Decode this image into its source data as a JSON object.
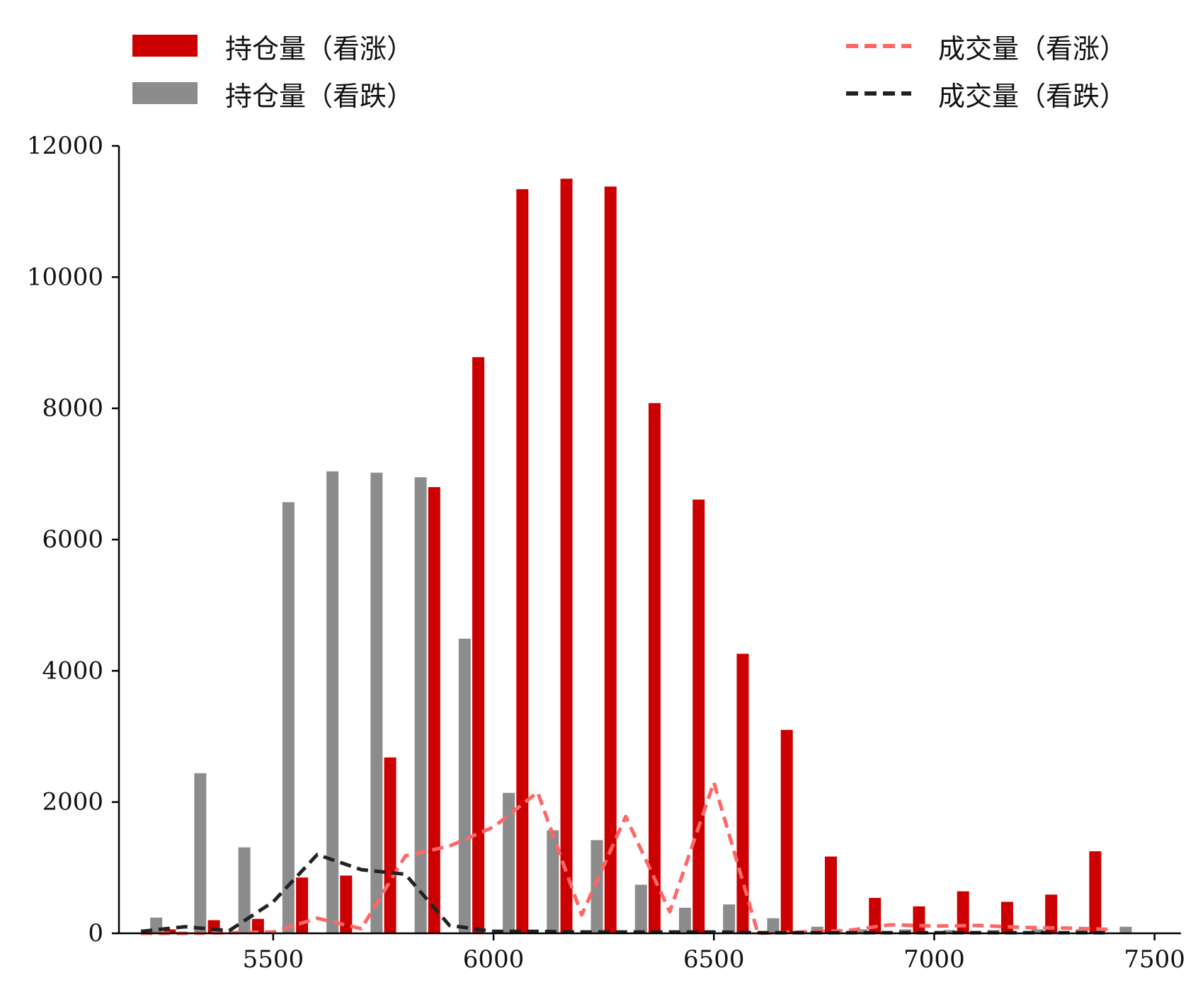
{
  "chart_data": {
    "type": "bar",
    "title": "",
    "xlabel": "",
    "ylabel": "",
    "xlim": [
      5150,
      7560
    ],
    "ylim": [
      0,
      12000
    ],
    "x_ticks": [
      5500,
      6000,
      6500,
      7000,
      7500
    ],
    "y_ticks": [
      0,
      2000,
      4000,
      6000,
      8000,
      10000,
      12000
    ],
    "x_tick_labels": [
      "5500",
      "6000",
      "6500",
      "7000",
      "7500"
    ],
    "y_tick_labels": [
      "0",
      "2000",
      "4000",
      "6000",
      "8000",
      "10000",
      "12000"
    ],
    "grid": false,
    "legend_position": "top",
    "strikes": [
      5200,
      5300,
      5400,
      5500,
      5600,
      5700,
      5800,
      5900,
      6000,
      6100,
      6200,
      6300,
      6400,
      6500,
      6600,
      6700,
      6800,
      6900,
      7000,
      7100,
      7200,
      7300,
      7400
    ],
    "series": [
      {
        "name": "持仓量（看涨）",
        "kind": "bar",
        "color": "#cc0000",
        "values": [
          0,
          60,
          200,
          220,
          850,
          880,
          2680,
          6800,
          8780,
          11340,
          11500,
          11380,
          8080,
          6610,
          4260,
          3100,
          1170,
          540,
          410,
          640,
          480,
          590,
          1250
        ]
      },
      {
        "name": "持仓量（看跌）",
        "kind": "bar",
        "color": "#8c8c8c",
        "values": [
          240,
          2440,
          1310,
          6570,
          7040,
          7020,
          6950,
          4490,
          2140,
          1570,
          1420,
          740,
          390,
          440,
          230,
          100,
          60,
          60,
          50,
          50,
          60,
          60,
          100
        ]
      },
      {
        "name": "成交量（看涨）",
        "kind": "line",
        "style": "dashed",
        "color": "#ff6666",
        "values": [
          0,
          0,
          10,
          20,
          230,
          70,
          1180,
          1330,
          1620,
          2150,
          280,
          1780,
          330,
          2300,
          0,
          20,
          40,
          130,
          110,
          120,
          90,
          80,
          60
        ]
      },
      {
        "name": "成交量（看跌）",
        "kind": "line",
        "style": "dashed",
        "color": "#222222",
        "values": [
          30,
          100,
          40,
          480,
          1200,
          970,
          900,
          120,
          30,
          30,
          20,
          20,
          20,
          20,
          10,
          10,
          10,
          10,
          10,
          10,
          10,
          10,
          10
        ]
      }
    ]
  }
}
